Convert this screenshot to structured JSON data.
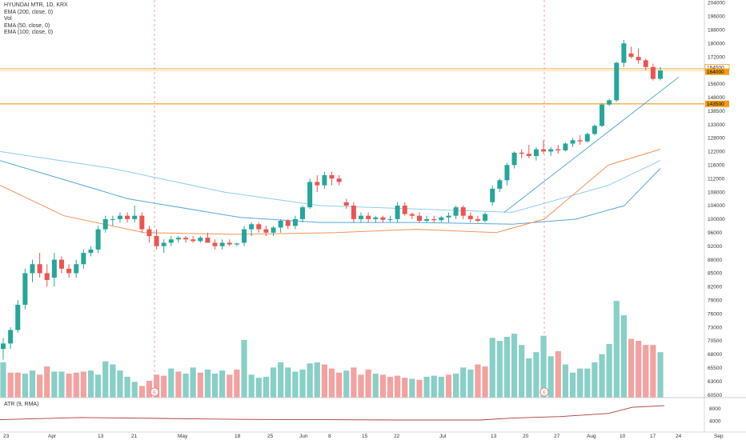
{
  "legend": {
    "symbol": "HYUNDAI MTR, 1D, KRX",
    "ema200": "EMA (200, close, 0)",
    "vol": "Vol",
    "ema50": "EMA (50, close, 0)",
    "ema100": "EMA (100, close, 0)"
  },
  "atr_label": "ATR (9, RMA)",
  "colors": {
    "up": "#26a69a",
    "down": "#ef5350",
    "vol_up": "#88cfc7",
    "vol_down": "#f4a1a0",
    "ema200": "#8fd0ea",
    "ema100": "#5aa7dc",
    "ema50": "#f49356",
    "trendline": "#5aa7dc",
    "hline": "#f39c12",
    "atr": "#b03a3a"
  },
  "chart_data": {
    "type": "candlestick",
    "price_ticks": [
      "204000",
      "196000",
      "188000",
      "180000",
      "172000",
      "164000",
      "156000",
      "148000",
      "138500",
      "133000",
      "128000",
      "122000",
      "116000",
      "112000",
      "108000",
      "104000",
      "100000",
      "96000",
      "92000",
      "88000",
      "85000",
      "82000",
      "79000",
      "76000",
      "73000",
      "70500",
      "68000",
      "65500",
      "63000",
      "60500"
    ],
    "atr_ticks": [
      "8000",
      "4000"
    ],
    "x_ticks": [
      "23",
      "Apr",
      "13",
      "21",
      "May",
      "18",
      "25",
      "Jun",
      "8",
      "15",
      "22",
      "Jul",
      "13",
      "20",
      "27",
      "Aug",
      "10",
      "17",
      "24",
      "Sep"
    ],
    "price_labels": {
      "hline_upper": "164500",
      "current": "164000",
      "hline_lower": "143500"
    },
    "earnings_markers": [
      "E",
      "E"
    ],
    "candles": [
      [
        69,
        71,
        67,
        70
      ],
      [
        70,
        73,
        69,
        72.5
      ],
      [
        72.5,
        79,
        72,
        78
      ],
      [
        78,
        86,
        77,
        85
      ],
      [
        85,
        88,
        83,
        87
      ],
      [
        87,
        90,
        84,
        85
      ],
      [
        85,
        87,
        82,
        83.5
      ],
      [
        84,
        90,
        82,
        88
      ],
      [
        88,
        89,
        85,
        86
      ],
      [
        86,
        87,
        84,
        85
      ],
      [
        85,
        88,
        84,
        87
      ],
      [
        87,
        91,
        86,
        90
      ],
      [
        90,
        92,
        89,
        91
      ],
      [
        91,
        98,
        90,
        97
      ],
      [
        97,
        101,
        96,
        100
      ],
      [
        100,
        101,
        98,
        100
      ],
      [
        100,
        102,
        99,
        101
      ],
      [
        101,
        102,
        99,
        100
      ],
      [
        100,
        104,
        99,
        101
      ],
      [
        101,
        102,
        96,
        97
      ],
      [
        97,
        98,
        93,
        95
      ],
      [
        95,
        97,
        91,
        92
      ],
      [
        92,
        94,
        90,
        93
      ],
      [
        93,
        95,
        92,
        94
      ],
      [
        94,
        95,
        93,
        94.5
      ],
      [
        94.5,
        95,
        93,
        94
      ],
      [
        94,
        95,
        93,
        93.5
      ],
      [
        93.5,
        95,
        93,
        94.5
      ],
      [
        94.5,
        96,
        93,
        93
      ],
      [
        93,
        94,
        91,
        92
      ],
      [
        92,
        94,
        91,
        93
      ],
      [
        93,
        94,
        92,
        92.5
      ],
      [
        92.5,
        93,
        92,
        92.8
      ],
      [
        93,
        98,
        92,
        97
      ],
      [
        97,
        99,
        95,
        98.5
      ],
      [
        98.5,
        99,
        96,
        97
      ],
      [
        97,
        98,
        95,
        96
      ],
      [
        96,
        98,
        95,
        97.5
      ],
      [
        97.5,
        100,
        96,
        99.5
      ],
      [
        99.5,
        100,
        97,
        98
      ],
      [
        98,
        101,
        97,
        100
      ],
      [
        100,
        104,
        99,
        103.5
      ],
      [
        103.5,
        112,
        103,
        111
      ],
      [
        111,
        113,
        108,
        110
      ],
      [
        110,
        114,
        109,
        113
      ],
      [
        113,
        114,
        110,
        112
      ],
      [
        112,
        113,
        110,
        111
      ],
      [
        105,
        106,
        103,
        104
      ],
      [
        104,
        105,
        99,
        100
      ],
      [
        100,
        102,
        99,
        101
      ],
      [
        101,
        102,
        99,
        100
      ],
      [
        100,
        101,
        99,
        100.5
      ],
      [
        100.5,
        101,
        99,
        99.8
      ],
      [
        99.8,
        101,
        99,
        100
      ],
      [
        100,
        105,
        99,
        104
      ],
      [
        104,
        105,
        101,
        101.5
      ],
      [
        101.5,
        102,
        100,
        101
      ],
      [
        101,
        102,
        99,
        99.5
      ],
      [
        99.5,
        101,
        99,
        100
      ],
      [
        100,
        101,
        99,
        99.7
      ],
      [
        99.7,
        101,
        99,
        100.5
      ],
      [
        100.5,
        102,
        99,
        101
      ],
      [
        101,
        104,
        100,
        103.5
      ],
      [
        103.5,
        104,
        100,
        101
      ],
      [
        101,
        102,
        99,
        100
      ],
      [
        100,
        101,
        99,
        99.5
      ],
      [
        99.5,
        102,
        99,
        101.5
      ],
      [
        105,
        110,
        104,
        109
      ],
      [
        109,
        112,
        108,
        111.5
      ],
      [
        111.5,
        117,
        110,
        116
      ],
      [
        116,
        122,
        115,
        121.5
      ],
      [
        121.5,
        123,
        119,
        121
      ],
      [
        121,
        125,
        119,
        120
      ],
      [
        120,
        124,
        118,
        123
      ],
      [
        123,
        127,
        121,
        122
      ],
      [
        122,
        124,
        120,
        123
      ],
      [
        123,
        125,
        121,
        122.5
      ],
      [
        122.5,
        126,
        122,
        125.5
      ],
      [
        125.5,
        128,
        124,
        127
      ],
      [
        127,
        129,
        125,
        126.5
      ],
      [
        126.5,
        130,
        126,
        129.5
      ],
      [
        129.5,
        133,
        129,
        132.5
      ],
      [
        132.5,
        144,
        132,
        143
      ],
      [
        143,
        147,
        142,
        146
      ],
      [
        146,
        169,
        145,
        168.5
      ],
      [
        168.5,
        182,
        166,
        180
      ],
      [
        174,
        178,
        171,
        172
      ],
      [
        172,
        177,
        168,
        170
      ],
      [
        170,
        171,
        164,
        166
      ],
      [
        166,
        168,
        158,
        159
      ],
      [
        159,
        166,
        158,
        164
      ]
    ],
    "volumes": [
      [
        34,
        1
      ],
      [
        24,
        0
      ],
      [
        24,
        0
      ],
      [
        23,
        1
      ],
      [
        26,
        1
      ],
      [
        22,
        0
      ],
      [
        30,
        0
      ],
      [
        25,
        1
      ],
      [
        25,
        1
      ],
      [
        23,
        0
      ],
      [
        24,
        0
      ],
      [
        25,
        0
      ],
      [
        26,
        1
      ],
      [
        22,
        1
      ],
      [
        35,
        1
      ],
      [
        32,
        1
      ],
      [
        26,
        1
      ],
      [
        20,
        1
      ],
      [
        15,
        1
      ],
      [
        11,
        0
      ],
      [
        16,
        0
      ],
      [
        22,
        0
      ],
      [
        21,
        0
      ],
      [
        28,
        1
      ],
      [
        25,
        0
      ],
      [
        23,
        1
      ],
      [
        29,
        1
      ],
      [
        24,
        0
      ],
      [
        27,
        1
      ],
      [
        23,
        1
      ],
      [
        26,
        1
      ],
      [
        22,
        0
      ],
      [
        27,
        0
      ],
      [
        56,
        1
      ],
      [
        22,
        1
      ],
      [
        19,
        1
      ],
      [
        20,
        1
      ],
      [
        29,
        1
      ],
      [
        34,
        1
      ],
      [
        29,
        1
      ],
      [
        25,
        1
      ],
      [
        27,
        1
      ],
      [
        33,
        1
      ],
      [
        34,
        1
      ],
      [
        32,
        0
      ],
      [
        28,
        0
      ],
      [
        24,
        0
      ],
      [
        26,
        1
      ],
      [
        29,
        0
      ],
      [
        22,
        0
      ],
      [
        27,
        0
      ],
      [
        23,
        1
      ],
      [
        22,
        0
      ],
      [
        20,
        0
      ],
      [
        21,
        0
      ],
      [
        19,
        0
      ],
      [
        18,
        1
      ],
      [
        17,
        0
      ],
      [
        20,
        1
      ],
      [
        21,
        1
      ],
      [
        20,
        1
      ],
      [
        22,
        0
      ],
      [
        23,
        1
      ],
      [
        29,
        1
      ],
      [
        27,
        1
      ],
      [
        32,
        0
      ],
      [
        30,
        0
      ],
      [
        58,
        1
      ],
      [
        55,
        1
      ],
      [
        59,
        1
      ],
      [
        62,
        1
      ],
      [
        51,
        1
      ],
      [
        38,
        1
      ],
      [
        44,
        1
      ],
      [
        60,
        1
      ],
      [
        40,
        1
      ],
      [
        45,
        0
      ],
      [
        32,
        1
      ],
      [
        24,
        1
      ],
      [
        28,
        1
      ],
      [
        28,
        1
      ],
      [
        34,
        1
      ],
      [
        42,
        1
      ],
      [
        52,
        1
      ],
      [
        94,
        1
      ],
      [
        80,
        1
      ],
      [
        57,
        0
      ],
      [
        55,
        0
      ],
      [
        51,
        0
      ],
      [
        51,
        0
      ],
      [
        44,
        1
      ]
    ],
    "ema200_points": [
      [
        0,
        122
      ],
      [
        140,
        115
      ],
      [
        280,
        108
      ],
      [
        400,
        104
      ],
      [
        520,
        103
      ],
      [
        640,
        102
      ],
      [
        760,
        110
      ],
      [
        825,
        118
      ]
    ],
    "ema100_points": [
      [
        0,
        118
      ],
      [
        160,
        106
      ],
      [
        300,
        100.5
      ],
      [
        400,
        99
      ],
      [
        520,
        99
      ],
      [
        640,
        98.5
      ],
      [
        720,
        100
      ],
      [
        780,
        104
      ],
      [
        825,
        115
      ]
    ],
    "ema50_points": [
      [
        0,
        110
      ],
      [
        80,
        101
      ],
      [
        180,
        96
      ],
      [
        300,
        95.5
      ],
      [
        420,
        96
      ],
      [
        520,
        97
      ],
      [
        620,
        96
      ],
      [
        680,
        100
      ],
      [
        760,
        116
      ],
      [
        825,
        123
      ]
    ],
    "trendline_points": [
      [
        630,
        102
      ],
      [
        848,
        160
      ]
    ],
    "atr_points": [
      [
        0,
        4500
      ],
      [
        100,
        5200
      ],
      [
        200,
        4900
      ],
      [
        300,
        4600
      ],
      [
        400,
        4500
      ],
      [
        500,
        4400
      ],
      [
        600,
        4400
      ],
      [
        640,
        5000
      ],
      [
        700,
        5500
      ],
      [
        760,
        6500
      ],
      [
        790,
        8500
      ],
      [
        830,
        9000
      ]
    ]
  }
}
